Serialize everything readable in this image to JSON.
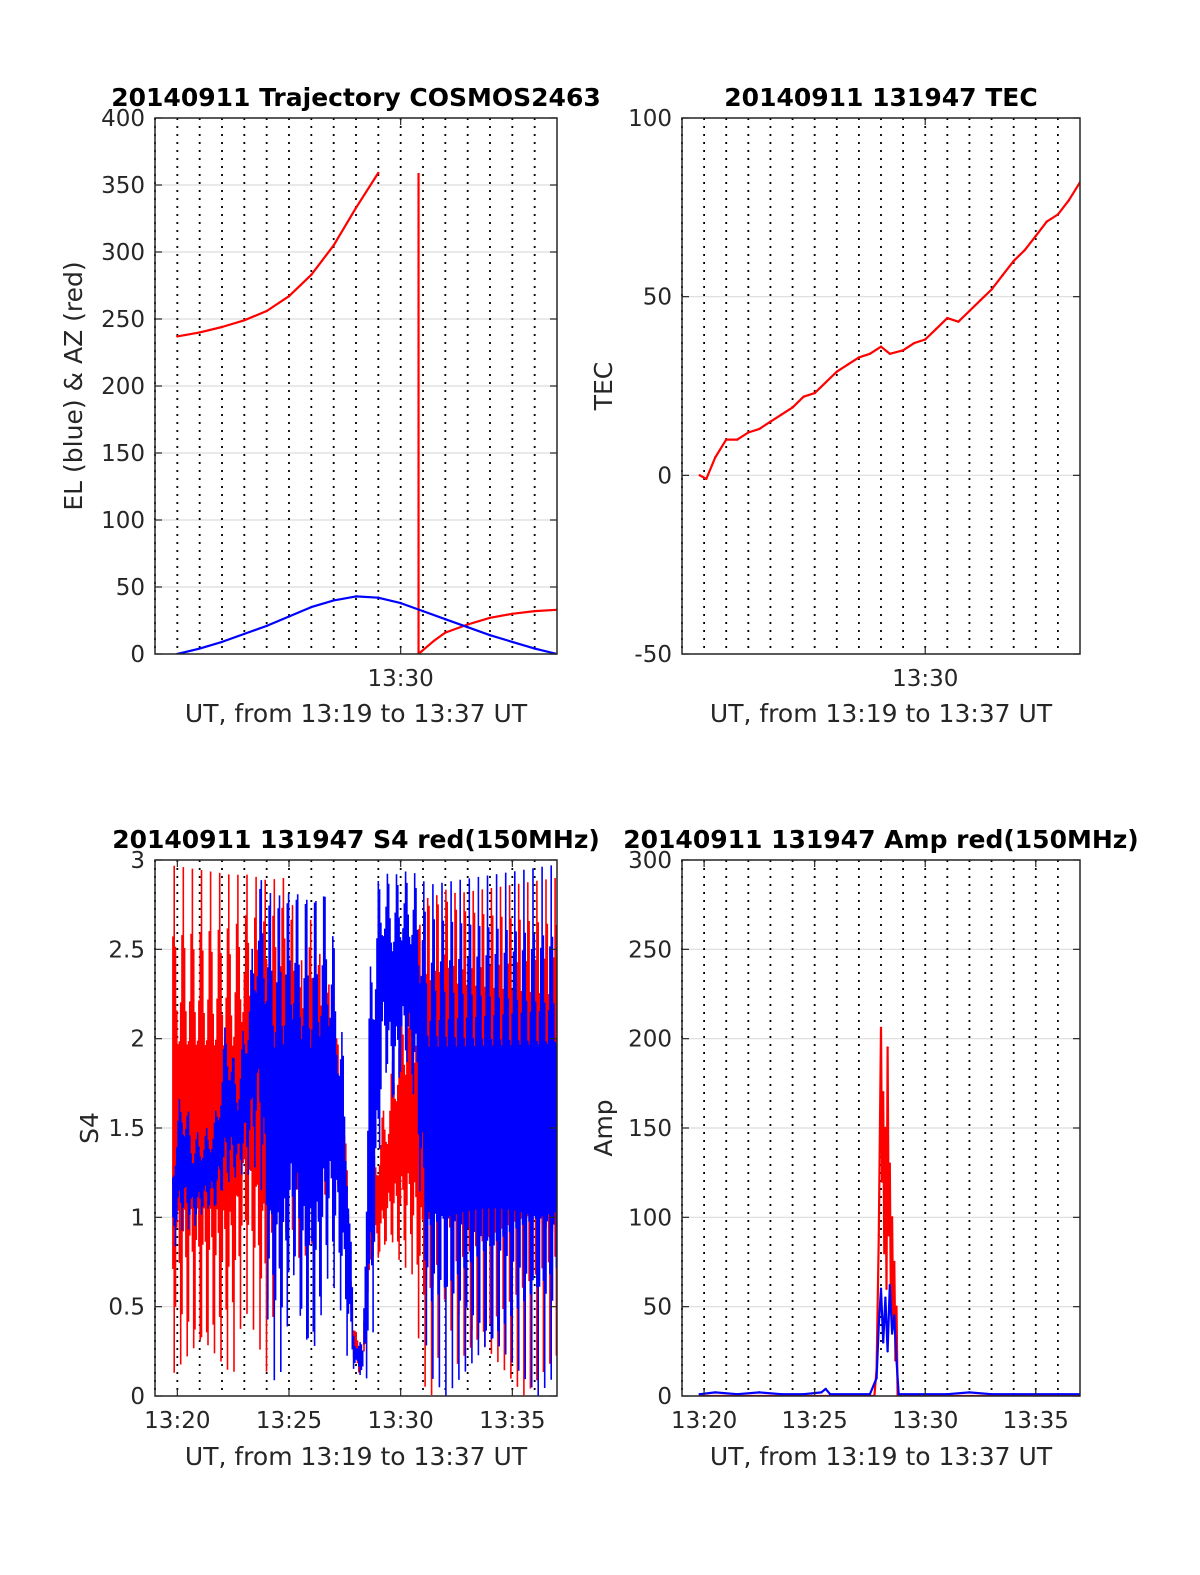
{
  "chart_data": [
    {
      "type": "line",
      "title": "20140911 Trajectory COSMOS2463",
      "xlabel": "UT, from 13:19 to 13:37 UT",
      "ylabel": "EL (blue) & AZ (red)",
      "xlim": [
        19,
        37
      ],
      "ylim": [
        0,
        400
      ],
      "yticks": [
        0,
        50,
        100,
        150,
        200,
        250,
        300,
        350,
        400
      ],
      "xtick_labels": [
        {
          "x": 30,
          "label": "13:30"
        }
      ],
      "grid": true,
      "series": [
        {
          "color": "#ff0000",
          "points": [
            [
              20,
              237
            ],
            [
              21,
              240
            ],
            [
              22,
              244
            ],
            [
              23,
              249
            ],
            [
              24,
              256
            ],
            [
              25,
              267
            ],
            [
              26,
              283
            ],
            [
              27,
              305
            ],
            [
              28,
              333
            ],
            [
              29,
              359
            ],
            [
              30.8,
              0
            ],
            [
              31.5,
              10
            ],
            [
              32,
              16
            ],
            [
              33,
              22
            ],
            [
              34,
              27
            ],
            [
              35,
              30
            ],
            [
              36,
              32
            ],
            [
              37,
              33
            ]
          ],
          "segments": [
            [
              0,
              9
            ],
            [
              10,
              17
            ]
          ],
          "drop": {
            "x": 30.8,
            "from": 359,
            "to": 0
          }
        },
        {
          "color": "#0000ff",
          "points": [
            [
              20,
              0
            ],
            [
              21,
              4
            ],
            [
              22,
              9
            ],
            [
              23,
              15
            ],
            [
              24,
              21
            ],
            [
              25,
              28
            ],
            [
              26,
              35
            ],
            [
              27,
              40
            ],
            [
              28,
              43
            ],
            [
              29,
              42
            ],
            [
              30,
              38
            ],
            [
              31,
              32
            ],
            [
              32,
              26
            ],
            [
              33,
              20
            ],
            [
              34,
              14
            ],
            [
              35,
              9
            ],
            [
              36,
              4
            ],
            [
              37,
              0
            ]
          ]
        }
      ]
    },
    {
      "type": "line",
      "title": "20140911 131947 TEC",
      "xlabel": "UT, from 13:19 to 13:37 UT",
      "ylabel": "TEC",
      "xlim": [
        19,
        37
      ],
      "ylim": [
        -50,
        100
      ],
      "yticks": [
        -50,
        0,
        50,
        100
      ],
      "xtick_labels": [
        {
          "x": 30,
          "label": "13:30"
        }
      ],
      "grid": true,
      "series": [
        {
          "color": "#ff0000",
          "points": [
            [
              19.8,
              0
            ],
            [
              20.1,
              -1
            ],
            [
              20.5,
              5
            ],
            [
              21,
              10
            ],
            [
              21.5,
              10
            ],
            [
              22,
              12
            ],
            [
              22.5,
              13
            ],
            [
              23,
              15
            ],
            [
              23.5,
              17
            ],
            [
              24,
              19
            ],
            [
              24.5,
              22
            ],
            [
              25,
              23
            ],
            [
              25.5,
              26
            ],
            [
              26,
              29
            ],
            [
              26.5,
              31
            ],
            [
              27,
              33
            ],
            [
              27.5,
              34
            ],
            [
              28,
              36
            ],
            [
              28.4,
              34
            ],
            [
              29,
              35
            ],
            [
              29.5,
              37
            ],
            [
              30,
              38
            ],
            [
              30.5,
              41
            ],
            [
              31,
              44
            ],
            [
              31.5,
              43
            ],
            [
              32,
              46
            ],
            [
              32.5,
              49
            ],
            [
              33,
              52
            ],
            [
              33.5,
              56
            ],
            [
              34,
              60
            ],
            [
              34.5,
              63
            ],
            [
              35,
              67
            ],
            [
              35.5,
              71
            ],
            [
              36,
              73
            ],
            [
              36.5,
              77
            ],
            [
              37,
              82
            ]
          ]
        }
      ]
    },
    {
      "type": "line",
      "title": "20140911 131947 S4 red(150MHz)",
      "xlabel": "UT, from 13:19 to 13:37 UT",
      "ylabel": "S4",
      "xlim": [
        19,
        37
      ],
      "ylim": [
        0,
        3
      ],
      "yticks": [
        0,
        0.5,
        1,
        1.5,
        2,
        2.5,
        3
      ],
      "ytick_labels": [
        "0",
        "0.5",
        "1",
        "1.5",
        "2",
        "2.5",
        "3"
      ],
      "xtick_labels": [
        {
          "x": 20,
          "label": "13:20"
        },
        {
          "x": 25,
          "label": "13:25"
        },
        {
          "x": 30,
          "label": "13:30"
        },
        {
          "x": 35,
          "label": "13:35"
        }
      ],
      "grid": true,
      "series": [
        {
          "color": "#ff0000",
          "envelope": [
            [
              19.8,
              0,
              3
            ],
            [
              20.5,
              0,
              3
            ],
            [
              21,
              0,
              3
            ],
            [
              21.5,
              0,
              3
            ],
            [
              22,
              0,
              3
            ],
            [
              22.5,
              0,
              3
            ],
            [
              23,
              0.5,
              3
            ],
            [
              23.5,
              0.3,
              3
            ],
            [
              24,
              0,
              3
            ],
            [
              24.5,
              0.5,
              3
            ],
            [
              25,
              0.8,
              3
            ],
            [
              25.5,
              0.5,
              2.5
            ],
            [
              26,
              0.5,
              2.8
            ],
            [
              26.5,
              0.8,
              2.5
            ],
            [
              27,
              1.0,
              2.3
            ],
            [
              27.5,
              0.9,
              1.6
            ],
            [
              27.9,
              0.15,
              0.4
            ],
            [
              28.3,
              0.1,
              0.3
            ],
            [
              28.7,
              0.7,
              1.3
            ],
            [
              29.1,
              0.7,
              1.6
            ],
            [
              29.5,
              0.8,
              1.8
            ],
            [
              30,
              0.6,
              2.4
            ],
            [
              30.5,
              0.6,
              2.5
            ],
            [
              31,
              0,
              3
            ],
            [
              31.5,
              0,
              3
            ],
            [
              32,
              0.5,
              3
            ],
            [
              32.5,
              0,
              3
            ],
            [
              33,
              0,
              3
            ],
            [
              33.5,
              0,
              3
            ],
            [
              34,
              0,
              3
            ],
            [
              34.5,
              0,
              3
            ],
            [
              35,
              0,
              3
            ],
            [
              35.5,
              0,
              3
            ],
            [
              36,
              0,
              3
            ],
            [
              36.5,
              0,
              3
            ],
            [
              37,
              0,
              3
            ]
          ]
        },
        {
          "color": "#0000ff",
          "envelope": [
            [
              19.8,
              0.8,
              1.4
            ],
            [
              20.2,
              0.9,
              1.8
            ],
            [
              20.7,
              0.9,
              1.5
            ],
            [
              21.2,
              1.0,
              1.5
            ],
            [
              21.7,
              1.0,
              1.6
            ],
            [
              22.2,
              1.1,
              2.2
            ],
            [
              22.7,
              1.2,
              1.8
            ],
            [
              23.2,
              1.2,
              2.4
            ],
            [
              23.7,
              1.3,
              3
            ],
            [
              24.2,
              0,
              3
            ],
            [
              24.7,
              0,
              3
            ],
            [
              25.2,
              0.5,
              3
            ],
            [
              25.7,
              0,
              3
            ],
            [
              26.2,
              0,
              3
            ],
            [
              26.7,
              0.5,
              3
            ],
            [
              27.2,
              0.5,
              2.5
            ],
            [
              27.6,
              0.2,
              1.7
            ],
            [
              27.9,
              0.15,
              0.35
            ],
            [
              28.3,
              0.1,
              0.3
            ],
            [
              28.7,
              0,
              3
            ],
            [
              29.2,
              1.8,
              3
            ],
            [
              29.7,
              1.5,
              3
            ],
            [
              30.2,
              1.8,
              3
            ],
            [
              30.7,
              1.5,
              3
            ],
            [
              31.2,
              0,
              3
            ],
            [
              31.7,
              0,
              3
            ],
            [
              32.2,
              0,
              3
            ],
            [
              32.7,
              0,
              3
            ],
            [
              33.2,
              0,
              3
            ],
            [
              33.7,
              0,
              3
            ],
            [
              34.2,
              0,
              3
            ],
            [
              34.7,
              0,
              3
            ],
            [
              35.2,
              0,
              3
            ],
            [
              35.7,
              0,
              3
            ],
            [
              36.2,
              0,
              3
            ],
            [
              36.7,
              0,
              3
            ],
            [
              37,
              0,
              3
            ]
          ]
        }
      ]
    },
    {
      "type": "line",
      "title": "20140911 131947 Amp red(150MHz)",
      "xlabel": "UT, from 13:19 to 13:37 UT",
      "ylabel": "Amp",
      "xlim": [
        19,
        37
      ],
      "ylim": [
        0,
        300
      ],
      "yticks": [
        0,
        50,
        100,
        150,
        200,
        250,
        300
      ],
      "xtick_labels": [
        {
          "x": 20,
          "label": "13:20"
        },
        {
          "x": 25,
          "label": "13:25"
        },
        {
          "x": 30,
          "label": "13:30"
        },
        {
          "x": 35,
          "label": "13:35"
        }
      ],
      "grid": true,
      "series": [
        {
          "color": "#ff0000",
          "points": [
            [
              19.8,
              0
            ],
            [
              27.7,
              0
            ],
            [
              27.8,
              15
            ],
            [
              27.9,
              90
            ],
            [
              28.0,
              206
            ],
            [
              28.05,
              120
            ],
            [
              28.1,
              170
            ],
            [
              28.15,
              80
            ],
            [
              28.2,
              150
            ],
            [
              28.25,
              60
            ],
            [
              28.3,
              195
            ],
            [
              28.35,
              90
            ],
            [
              28.4,
              130
            ],
            [
              28.45,
              50
            ],
            [
              28.5,
              100
            ],
            [
              28.55,
              40
            ],
            [
              28.6,
              75
            ],
            [
              28.65,
              20
            ],
            [
              28.7,
              50
            ],
            [
              28.75,
              0
            ],
            [
              37,
              0
            ]
          ]
        },
        {
          "color": "#0000ff",
          "points": [
            [
              19.8,
              1
            ],
            [
              20.5,
              2
            ],
            [
              21.5,
              1
            ],
            [
              22.5,
              2
            ],
            [
              23.5,
              1
            ],
            [
              24.5,
              1
            ],
            [
              25.3,
              2
            ],
            [
              25.5,
              4
            ],
            [
              25.7,
              1
            ],
            [
              27.5,
              1
            ],
            [
              27.8,
              10
            ],
            [
              27.9,
              40
            ],
            [
              28.0,
              60
            ],
            [
              28.1,
              30
            ],
            [
              28.2,
              55
            ],
            [
              28.3,
              25
            ],
            [
              28.4,
              62
            ],
            [
              28.5,
              35
            ],
            [
              28.6,
              45
            ],
            [
              28.7,
              20
            ],
            [
              28.8,
              1
            ],
            [
              30,
              1
            ],
            [
              31,
              1
            ],
            [
              32,
              2
            ],
            [
              33,
              1
            ],
            [
              34,
              1
            ],
            [
              35,
              1
            ],
            [
              36,
              1
            ],
            [
              37,
              1
            ]
          ]
        }
      ]
    }
  ]
}
